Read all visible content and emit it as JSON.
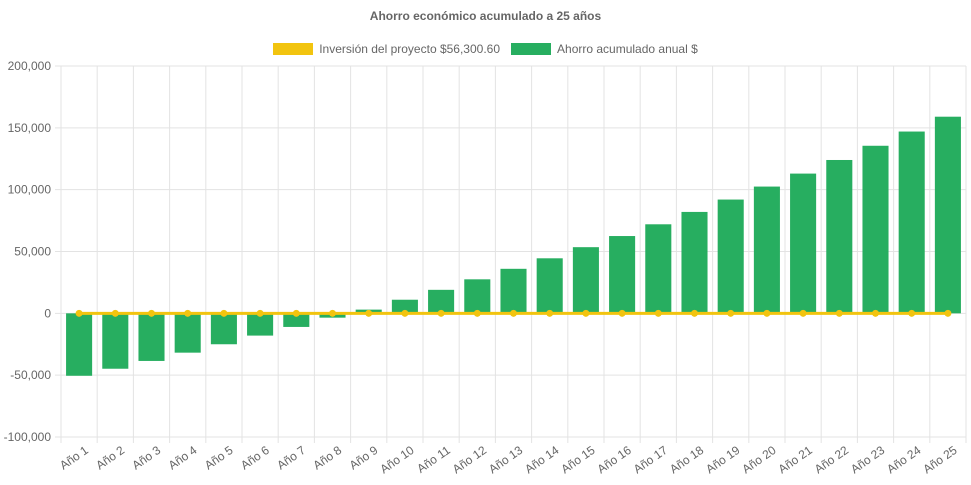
{
  "chart_data": {
    "type": "bar",
    "title": "Ahorro económico acumulado a 25 años",
    "categories": [
      "Año 1",
      "Año 2",
      "Año 3",
      "Año 4",
      "Año 5",
      "Año 6",
      "Año 7",
      "Año 8",
      "Año 9",
      "Año 10",
      "Año 11",
      "Año 12",
      "Año 13",
      "Año 14",
      "Año 15",
      "Año 16",
      "Año 17",
      "Año 18",
      "Año 19",
      "Año 20",
      "Año 21",
      "Año 22",
      "Año 23",
      "Año 24",
      "Año 25"
    ],
    "series": [
      {
        "name": "Inversión del proyecto $56,300.60",
        "type": "line",
        "color": "#f2c40f",
        "values": [
          0,
          0,
          0,
          0,
          0,
          0,
          0,
          0,
          0,
          0,
          0,
          0,
          0,
          0,
          0,
          0,
          0,
          0,
          0,
          0,
          0,
          0,
          0,
          0,
          0
        ]
      },
      {
        "name": "Ahorro acumulado anual $",
        "type": "bar",
        "color": "#27ae60",
        "values": [
          -50500,
          -44800,
          -38500,
          -31800,
          -25000,
          -18000,
          -11000,
          -3500,
          3000,
          11000,
          19000,
          27500,
          36000,
          44500,
          53500,
          62500,
          72000,
          82000,
          92000,
          102500,
          113000,
          124000,
          135500,
          147000,
          159000
        ]
      }
    ],
    "y_ticks": [
      "200,000",
      "150,000",
      "100,000",
      "50,000",
      "0",
      "-50,000",
      "-100,000"
    ],
    "ylim": [
      -100000,
      200000
    ],
    "grid": true,
    "legend_position": "top"
  }
}
